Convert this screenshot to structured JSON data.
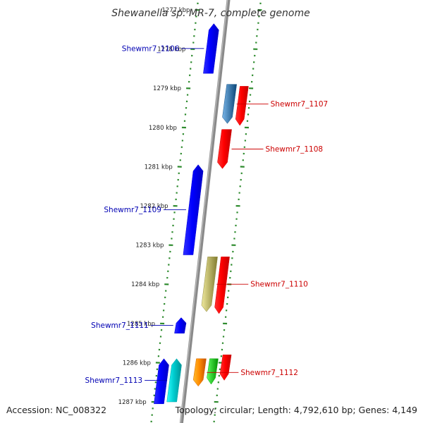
{
  "title": "Shewanella sp. MR-7, complete genome",
  "footer": {
    "accession": "Accession: NC_008322",
    "topology": "Topology: circular; Length: 4,792,610 bp; Genes: 4,149"
  },
  "colors": {
    "forward_label": "#cc0000",
    "reverse_label": "#0000b3",
    "tick": "#2e8b2e",
    "backbone": "#8a8a8a"
  },
  "ticks": [
    {
      "kbp": 1277,
      "label": "1277 kbp"
    },
    {
      "kbp": 1278,
      "label": "1278 kbp"
    },
    {
      "kbp": 1279,
      "label": "1279 kbp"
    },
    {
      "kbp": 1280,
      "label": "1280 kbp"
    },
    {
      "kbp": 1281,
      "label": "1281 kbp"
    },
    {
      "kbp": 1282,
      "label": "1282 kbp"
    },
    {
      "kbp": 1283,
      "label": "1283 kbp"
    },
    {
      "kbp": 1284,
      "label": "1284 kbp"
    },
    {
      "kbp": 1285,
      "label": "1285 kbp"
    },
    {
      "kbp": 1286,
      "label": "1286 kbp"
    },
    {
      "kbp": 1287,
      "label": "1287 kbp"
    }
  ],
  "features": [
    {
      "name": "Shewmr7_1106",
      "strand": "reverse",
      "color": "#0000ff",
      "start_kbp": 1277.35,
      "end_kbp": 1278.62,
      "labeled": true
    },
    {
      "name": "Shewmr7_1107",
      "strand": "forward",
      "color": "#4682b4",
      "start_kbp": 1278.9,
      "end_kbp": 1279.9,
      "labeled": true
    },
    {
      "name": "",
      "strand": "forward",
      "color": "#ff0000",
      "start_kbp": 1278.95,
      "end_kbp": 1279.95,
      "labeled": false
    },
    {
      "name": "Shewmr7_1108",
      "strand": "forward",
      "color": "#ff0000",
      "start_kbp": 1280.05,
      "end_kbp": 1281.05,
      "labeled": true
    },
    {
      "name": "Shewmr7_1109",
      "strand": "reverse",
      "color": "#0000ff",
      "start_kbp": 1280.95,
      "end_kbp": 1283.25,
      "labeled": true
    },
    {
      "name": "Shewmr7_1110",
      "strand": "forward",
      "color": "#bdb76b",
      "start_kbp": 1283.3,
      "end_kbp": 1284.7,
      "labeled": true
    },
    {
      "name": "",
      "strand": "forward",
      "color": "#ff0000",
      "start_kbp": 1283.3,
      "end_kbp": 1284.75,
      "labeled": false
    },
    {
      "name": "Shewmr7_1111",
      "strand": "reverse",
      "color": "#0000ff",
      "start_kbp": 1284.85,
      "end_kbp": 1285.25,
      "labeled": true
    },
    {
      "name": "Shewmr7_1112",
      "strand": "forward",
      "color": "#ff8c00",
      "start_kbp": 1285.9,
      "end_kbp": 1286.6,
      "labeled": true
    },
    {
      "name": "",
      "strand": "forward",
      "color": "#32cd32",
      "start_kbp": 1285.9,
      "end_kbp": 1286.55,
      "labeled": false
    },
    {
      "name": "",
      "strand": "forward",
      "color": "#ff0000",
      "start_kbp": 1285.8,
      "end_kbp": 1286.45,
      "labeled": false
    },
    {
      "name": "Shewmr7_1113",
      "strand": "reverse",
      "color": "#00ced1",
      "start_kbp": 1285.9,
      "end_kbp": 1287.0,
      "labeled": true
    },
    {
      "name": "",
      "strand": "reverse",
      "color": "#0000ff",
      "start_kbp": 1285.9,
      "end_kbp": 1287.05,
      "labeled": false
    }
  ]
}
